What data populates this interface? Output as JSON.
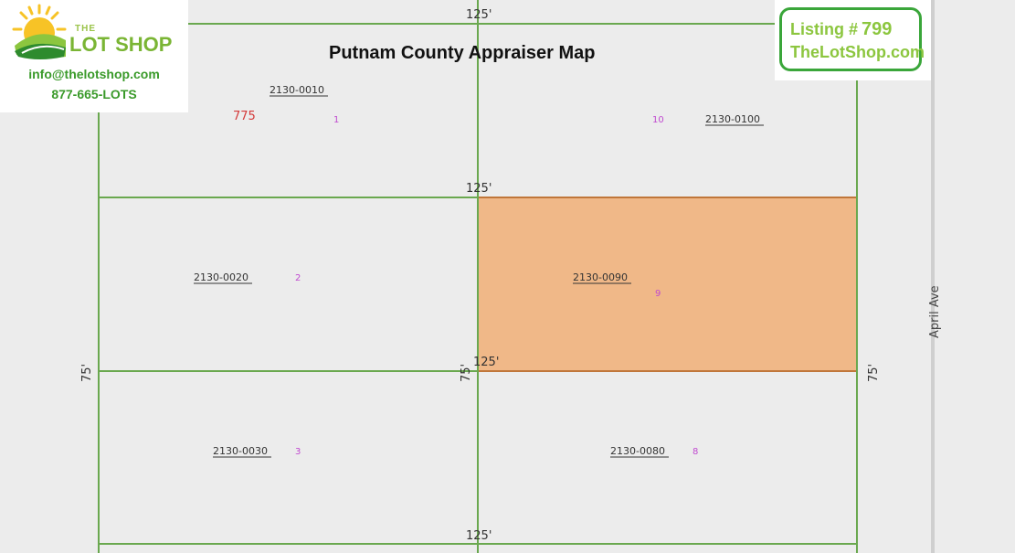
{
  "title": "Putnam County Appraiser Map",
  "logo": {
    "the": "THE",
    "name": "LOT SHOP",
    "email": "info@thelotshop.com",
    "phone": "877-665-LOTS",
    "colors": {
      "sun": "#f7c326",
      "hill_dark": "#2e8b2e",
      "hill_light": "#8cc63f"
    }
  },
  "listing": {
    "label": "Listing #",
    "number": "799",
    "site": "TheLotShop.com",
    "border_color": "#3aa63a",
    "text_color": "#8cc63f"
  },
  "map": {
    "line_color": "#6aa84f",
    "highlight_fill": "#f0b888",
    "highlight_stroke": "#c0763a",
    "street": "April Ave",
    "address_number": "775",
    "parcels": [
      {
        "id": "2130-0010",
        "lot": "1"
      },
      {
        "id": "2130-0100",
        "lot": "10"
      },
      {
        "id": "2130-0020",
        "lot": "2"
      },
      {
        "id": "2130-0090",
        "lot": "9",
        "highlighted": true
      },
      {
        "id": "2130-0030",
        "lot": "3"
      },
      {
        "id": "2130-0080",
        "lot": "8"
      }
    ],
    "dimensions": {
      "top": "125'",
      "middle": "125'",
      "subject_bottom": "125'",
      "bottom": "125'",
      "left_side": "75'",
      "center_side": "75'",
      "right_side": "75'"
    }
  }
}
